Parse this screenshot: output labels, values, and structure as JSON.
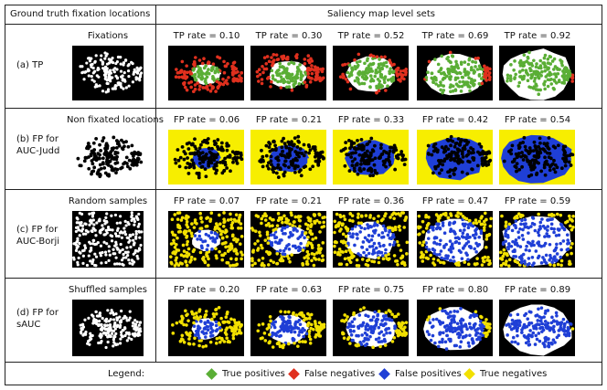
{
  "headers": {
    "left": "Ground truth fixation locations",
    "right": "Saliency map level sets"
  },
  "rows": [
    {
      "id": "tp",
      "label_lines": [
        "(a) TP"
      ],
      "gt_caption": "Fixations",
      "gt_style": "fixations",
      "map_type": "tp",
      "rate_labels": [
        "TP rate = 0.10",
        "TP rate = 0.30",
        "TP rate = 0.52",
        "TP rate = 0.69",
        "TP rate = 0.92"
      ]
    },
    {
      "id": "fp-judd",
      "label_lines": [
        "(b) FP for",
        "AUC-Judd"
      ],
      "gt_caption": "Non fixated locations",
      "gt_style": "black-dots",
      "map_type": "judd",
      "rate_labels": [
        "FP rate = 0.06",
        "FP rate = 0.21",
        "FP rate = 0.33",
        "FP rate = 0.42",
        "FP rate = 0.54"
      ]
    },
    {
      "id": "fp-borji",
      "label_lines": [
        "(c) FP for",
        "AUC-Borji"
      ],
      "gt_caption": "Random samples",
      "gt_style": "uniform",
      "map_type": "borji",
      "rate_labels": [
        "FP rate = 0.07",
        "FP rate = 0.21",
        "FP rate = 0.36",
        "FP rate = 0.47",
        "FP rate = 0.59"
      ]
    },
    {
      "id": "fp-sauc",
      "label_lines": [
        "(d) FP for",
        "sAUC"
      ],
      "gt_caption": "Shuffled samples",
      "gt_style": "shuffled",
      "map_type": "sauc",
      "rate_labels": [
        "FP rate = 0.20",
        "FP rate = 0.63",
        "FP rate = 0.75",
        "FP rate = 0.80",
        "FP rate = 0.89"
      ]
    }
  ],
  "legend": {
    "title": "Legend:",
    "items": [
      {
        "label": "True positives",
        "color": "#5aae35"
      },
      {
        "label": "False negatives",
        "color": "#e0301e"
      },
      {
        "label": "False positives",
        "color": "#1f3fd6"
      },
      {
        "label": "True negatives",
        "color": "#f2e000"
      }
    ]
  },
  "colors": {
    "saliency_region": "#ffffff",
    "fp_region": "#1f3fd6",
    "background_dark": "#000000",
    "background_yellow": "#f7ee00"
  }
}
